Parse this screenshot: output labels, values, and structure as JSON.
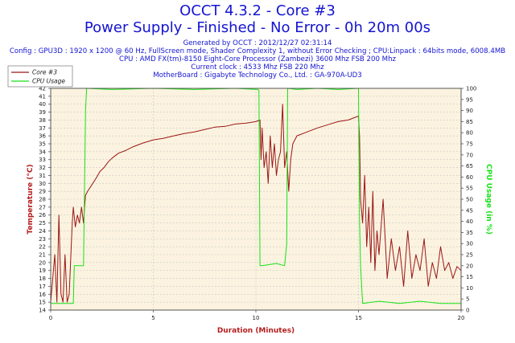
{
  "header": {
    "title": "OCCT 4.3.2 - Core #3",
    "subtitle": "Power Supply - Finished - No Error - 0h 20m 00s",
    "info_lines": [
      "Generated by OCCT : 2012/12/27 02:31:14",
      "Config : GPU3D : 1920 x 1200 @ 60 Hz, FullScreen mode, Shader Complexity 1, without Error Checking ; CPU:Linpack : 64bits mode, 6008.4MB",
      "CPU : AMD FX(tm)-8150 Eight-Core Processor (Zambezi) 3600 Mhz FSB 200 Mhz",
      "Current clock : 4533 Mhz FSB 220 Mhz",
      "MotherBoard : Gigabyte Technology Co., Ltd. : GA-970A-UD3"
    ]
  },
  "colors": {
    "title": "#1414d2",
    "axis_label": "#b41e1e",
    "core_series": "#9b1616",
    "cpu_series": "#17e117",
    "plot_background": "#fbf3df",
    "grid": "#c9c9c9"
  },
  "chart_data": {
    "type": "line",
    "xlabel": "Duration (Minutes)",
    "ylabel": "Temperature (°C)",
    "y2label": "CPU Usage (in %)",
    "xlim": [
      0,
      20
    ],
    "ylim": [
      14,
      42
    ],
    "y2lim": [
      0,
      100
    ],
    "xticks": [
      0,
      5,
      10,
      15,
      20
    ],
    "yticks": [
      14,
      15,
      16,
      17,
      18,
      19,
      20,
      21,
      22,
      23,
      24,
      25,
      26,
      27,
      28,
      29,
      30,
      31,
      32,
      33,
      34,
      35,
      36,
      37,
      38,
      39,
      40,
      41,
      42
    ],
    "y2ticks": [
      0,
      5,
      10,
      15,
      20,
      25,
      30,
      35,
      40,
      45,
      50,
      55,
      60,
      65,
      70,
      75,
      80,
      85,
      90,
      95,
      100
    ],
    "grid": true,
    "legend": {
      "position": "top-left"
    },
    "series": [
      {
        "name": "Core #3",
        "axis": "left",
        "x": [
          0,
          0.2,
          0.3,
          0.4,
          0.5,
          0.6,
          0.7,
          0.8,
          0.9,
          1.0,
          1.05,
          1.1,
          1.2,
          1.3,
          1.4,
          1.5,
          1.6,
          1.65,
          1.7,
          1.8,
          2.0,
          2.2,
          2.4,
          2.6,
          2.8,
          3.0,
          3.3,
          3.6,
          4.0,
          4.5,
          5.0,
          5.5,
          6.0,
          6.5,
          7.0,
          7.5,
          8.0,
          8.5,
          9.0,
          9.5,
          10.0,
          10.2,
          10.25,
          10.3,
          10.4,
          10.5,
          10.6,
          10.7,
          10.8,
          10.9,
          11.0,
          11.1,
          11.2,
          11.3,
          11.4,
          11.5,
          11.6,
          11.7,
          11.8,
          12.0,
          12.5,
          13.0,
          13.5,
          14.0,
          14.5,
          15.0,
          15.05,
          15.1,
          15.2,
          15.3,
          15.4,
          15.5,
          15.6,
          15.7,
          15.8,
          15.9,
          16.0,
          16.2,
          16.4,
          16.6,
          16.8,
          17.0,
          17.2,
          17.4,
          17.6,
          17.8,
          18.0,
          18.2,
          18.4,
          18.6,
          18.8,
          19.0,
          19.2,
          19.4,
          19.6,
          19.8,
          20.0
        ],
        "y": [
          15,
          21,
          15,
          26,
          16,
          15,
          21,
          15,
          16,
          22,
          25,
          27,
          24.5,
          26,
          25,
          27,
          25,
          27,
          28.5,
          29,
          29.8,
          30.6,
          31.5,
          32,
          32.7,
          33.2,
          33.8,
          34.1,
          34.6,
          35.1,
          35.5,
          35.7,
          36,
          36.3,
          36.5,
          36.8,
          37.1,
          37.2,
          37.5,
          37.6,
          37.8,
          38,
          33,
          37,
          32,
          34,
          30,
          36,
          32,
          35,
          31,
          33,
          34,
          40,
          32,
          34,
          29,
          33,
          35,
          36,
          36.5,
          37,
          37.4,
          37.8,
          38,
          38.5,
          36,
          28,
          25,
          31,
          22,
          27,
          20,
          29,
          19,
          24,
          21,
          28,
          18,
          23,
          19,
          22,
          17,
          24,
          18,
          21,
          19,
          23,
          17,
          20,
          18,
          22,
          19,
          20,
          18,
          19.5,
          19
        ]
      },
      {
        "name": "CPU Usage",
        "axis": "right",
        "x": [
          0,
          1.1,
          1.15,
          1.6,
          1.7,
          1.75,
          3.0,
          5.0,
          7.0,
          9.0,
          10.1,
          10.15,
          10.2,
          10.3,
          11.0,
          11.4,
          11.5,
          11.55,
          12.0,
          13.0,
          14.0,
          15.0,
          15.05,
          15.1,
          15.2,
          16.0,
          17.0,
          18.0,
          19.0,
          20.0
        ],
        "y": [
          3,
          3,
          20,
          20,
          90,
          100,
          99.5,
          100,
          99.5,
          100,
          99.5,
          99,
          20,
          20,
          21,
          20,
          30,
          100,
          99.5,
          100,
          99.5,
          100,
          40,
          20,
          3,
          4,
          3,
          4,
          3,
          3
        ]
      }
    ]
  }
}
